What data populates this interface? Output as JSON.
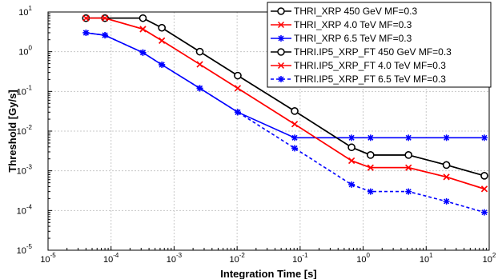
{
  "chart_data": {
    "type": "line",
    "xlabel": "Integration Time [s]",
    "ylabel": "Threshold [Gy/s]",
    "xscale": "log",
    "yscale": "log",
    "xlim": [
      1e-05,
      100
    ],
    "ylim": [
      1e-05,
      10
    ],
    "grid": true,
    "legend_position": "top-right",
    "x_ticks": [
      {
        "value": 1e-05,
        "base": "10",
        "exp": "-5"
      },
      {
        "value": 0.0001,
        "base": "10",
        "exp": "-4"
      },
      {
        "value": 0.001,
        "base": "10",
        "exp": "-3"
      },
      {
        "value": 0.01,
        "base": "10",
        "exp": "-2"
      },
      {
        "value": 0.1,
        "base": "10",
        "exp": "-1"
      },
      {
        "value": 1,
        "base": "10",
        "exp": "0"
      },
      {
        "value": 10,
        "base": "10",
        "exp": "1"
      },
      {
        "value": 100,
        "base": "10",
        "exp": "2"
      }
    ],
    "y_ticks": [
      {
        "value": 1e-05,
        "base": "10",
        "exp": "-5"
      },
      {
        "value": 0.0001,
        "base": "10",
        "exp": "-4"
      },
      {
        "value": 0.001,
        "base": "10",
        "exp": "-3"
      },
      {
        "value": 0.01,
        "base": "10",
        "exp": "-2"
      },
      {
        "value": 0.1,
        "base": "10",
        "exp": "-1"
      },
      {
        "value": 1,
        "base": "10",
        "exp": "0"
      },
      {
        "value": 10,
        "base": "10",
        "exp": "1"
      }
    ],
    "series": [
      {
        "name": "THRI_XRP 450 GeV  MF=0.3",
        "color": "#000000",
        "line_style": "solid",
        "marker": "circle",
        "x": [
          4e-05,
          8e-05,
          0.00032,
          0.00064,
          0.00256,
          0.01024,
          0.08192,
          0.65536,
          1.31072,
          5.24288,
          20.97152,
          83.88608
        ],
        "y": [
          7,
          7,
          7,
          4,
          1,
          0.25,
          0.032,
          0.0039,
          0.0025,
          0.0025,
          0.0014,
          0.00075
        ]
      },
      {
        "name": "THRI_XRP 4.0 TeV  MF=0.3",
        "color": "#ff0000",
        "line_style": "solid",
        "marker": "x",
        "x": [
          4e-05,
          8e-05,
          0.00032,
          0.00064,
          0.00256,
          0.01024,
          0.08192,
          0.65536,
          1.31072,
          5.24288,
          20.97152,
          83.88608
        ],
        "y": [
          7,
          7,
          3.7,
          1.9,
          0.48,
          0.12,
          0.015,
          0.0018,
          0.0012,
          0.0012,
          0.0007,
          0.00035
        ]
      },
      {
        "name": "THRI_XRP 6.5 TeV  MF=0.3",
        "color": "#0000ff",
        "line_style": "solid",
        "marker": "star",
        "x": [
          4e-05,
          8e-05,
          0.00032,
          0.00064,
          0.00256,
          0.01024,
          0.08192,
          0.65536,
          1.31072,
          5.24288,
          20.97152,
          83.88608
        ],
        "y": [
          3,
          2.6,
          0.95,
          0.47,
          0.12,
          0.03,
          0.0068,
          0.0068,
          0.0068,
          0.0068,
          0.0068,
          0.0068
        ]
      },
      {
        "name": "THRI.IP5_XRP_FT 450 GeV  MF=0.3",
        "color": "#000000",
        "line_style": "solid",
        "marker": "circle",
        "x": [
          4e-05,
          8e-05,
          0.00032,
          0.00064,
          0.00256,
          0.01024,
          0.08192,
          0.65536,
          1.31072,
          5.24288,
          20.97152,
          83.88608
        ],
        "y": [
          7,
          7,
          7,
          4,
          1,
          0.25,
          0.032,
          0.0039,
          0.0025,
          0.0025,
          0.0014,
          0.00075
        ]
      },
      {
        "name": "THRI.IP5_XRP_FT 4.0 TeV  MF=0.3",
        "color": "#ff0000",
        "line_style": "solid",
        "marker": "x",
        "x": [
          4e-05,
          8e-05,
          0.00032,
          0.00064,
          0.00256,
          0.01024,
          0.08192,
          0.65536,
          1.31072,
          5.24288,
          20.97152,
          83.88608
        ],
        "y": [
          7,
          7,
          3.7,
          1.9,
          0.48,
          0.12,
          0.015,
          0.0018,
          0.0012,
          0.0012,
          0.0007,
          0.00035
        ]
      },
      {
        "name": "THRI.IP5_XRP_FT 6.5 TeV  MF=0.3",
        "color": "#0000ff",
        "line_style": "dashed",
        "marker": "star",
        "x": [
          4e-05,
          8e-05,
          0.00032,
          0.00064,
          0.00256,
          0.01024,
          0.08192,
          0.65536,
          1.31072,
          5.24288,
          20.97152,
          83.88608
        ],
        "y": [
          3,
          2.6,
          0.95,
          0.47,
          0.12,
          0.03,
          0.0037,
          0.00045,
          0.0003,
          0.0003,
          0.00017,
          9e-05
        ]
      }
    ]
  }
}
